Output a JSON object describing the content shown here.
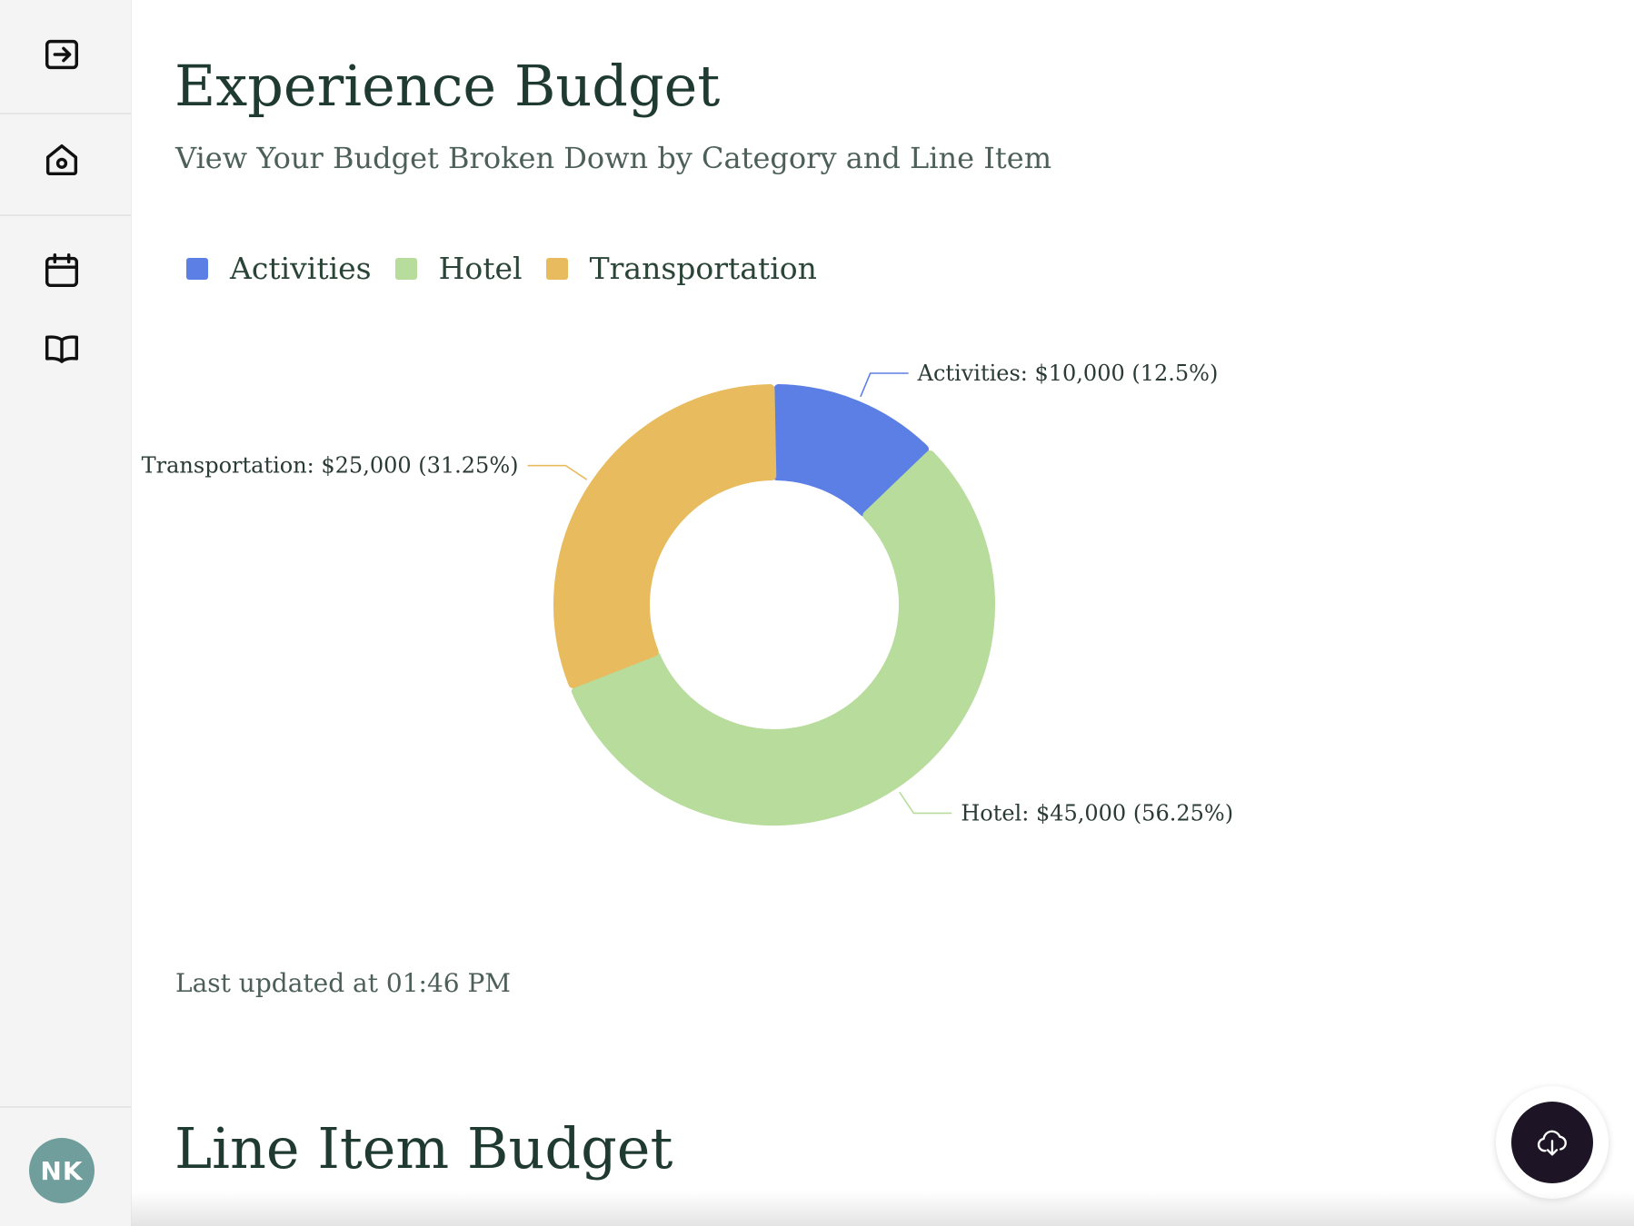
{
  "sidebar": {
    "items": [
      {
        "icon": "exit-icon"
      },
      {
        "icon": "home-icon"
      },
      {
        "icon": "calendar-icon"
      },
      {
        "icon": "book-icon"
      }
    ],
    "user_initials": "NK"
  },
  "header": {
    "title": "Experience Budget",
    "subtitle": "View Your Budget Broken Down by Category and Line Item"
  },
  "chart_data": {
    "type": "pie",
    "donut": true,
    "legend_position": "top-left",
    "series": [
      {
        "name": "Activities",
        "value": 10000,
        "percent": 12.5,
        "color": "#5b7fe4",
        "label": "Activities: $10,000 (12.5%)"
      },
      {
        "name": "Hotel",
        "value": 45000,
        "percent": 56.25,
        "color": "#b7dc9b",
        "label": "Hotel: $45,000 (56.25%)"
      },
      {
        "name": "Transportation",
        "value": 25000,
        "percent": 31.25,
        "color": "#e8bc5e",
        "label": "Transportation: $25,000 (31.25%)"
      }
    ]
  },
  "status": {
    "last_updated": "Last updated at 01:46 PM"
  },
  "line_items": {
    "title": "Line Item Budget"
  },
  "fab": {
    "icon": "cloud-download-icon"
  }
}
